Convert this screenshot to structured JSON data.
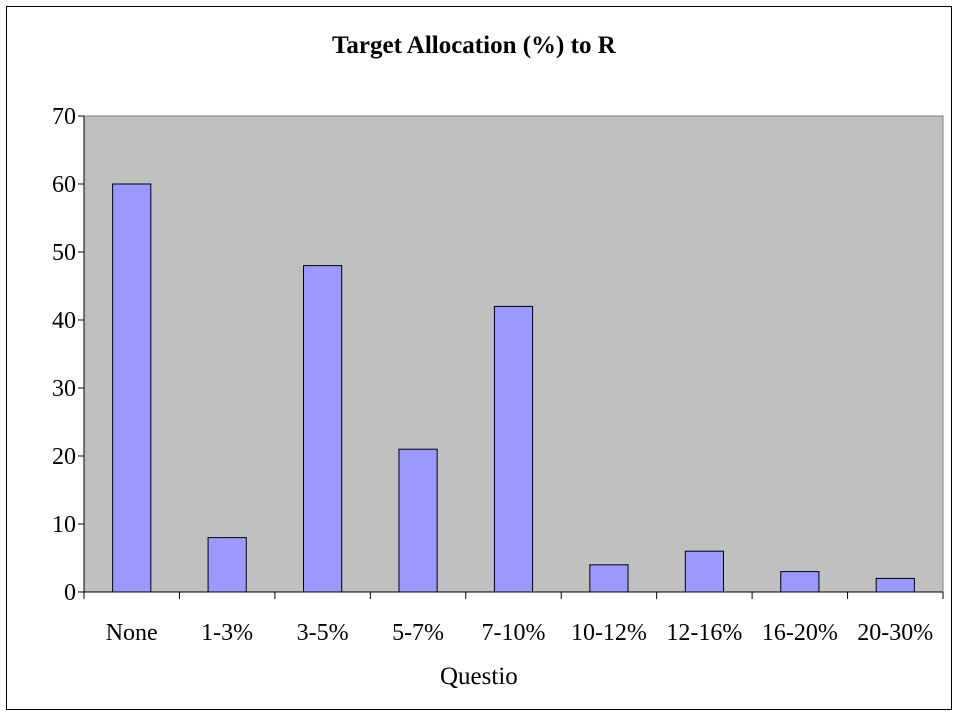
{
  "chart_data": {
    "type": "bar",
    "title": "Target Allocation (%) to R",
    "xlabel": "Questio",
    "ylabel": "",
    "categories": [
      "None",
      "1-3%",
      "3-5%",
      "5-7%",
      "7-10%",
      "10-12%",
      "12-16%",
      "16-20%",
      "20-30%"
    ],
    "values": [
      60,
      8,
      48,
      21,
      42,
      4,
      6,
      3,
      2
    ],
    "ylim": [
      0,
      70
    ],
    "yticks": [
      0,
      10,
      20,
      30,
      40,
      50,
      60,
      70
    ],
    "grid": false,
    "legend": "none",
    "colors": {
      "bar_fill": "#9999ff",
      "bar_stroke": "#000000",
      "plot_background": "#c0c0c0"
    }
  }
}
